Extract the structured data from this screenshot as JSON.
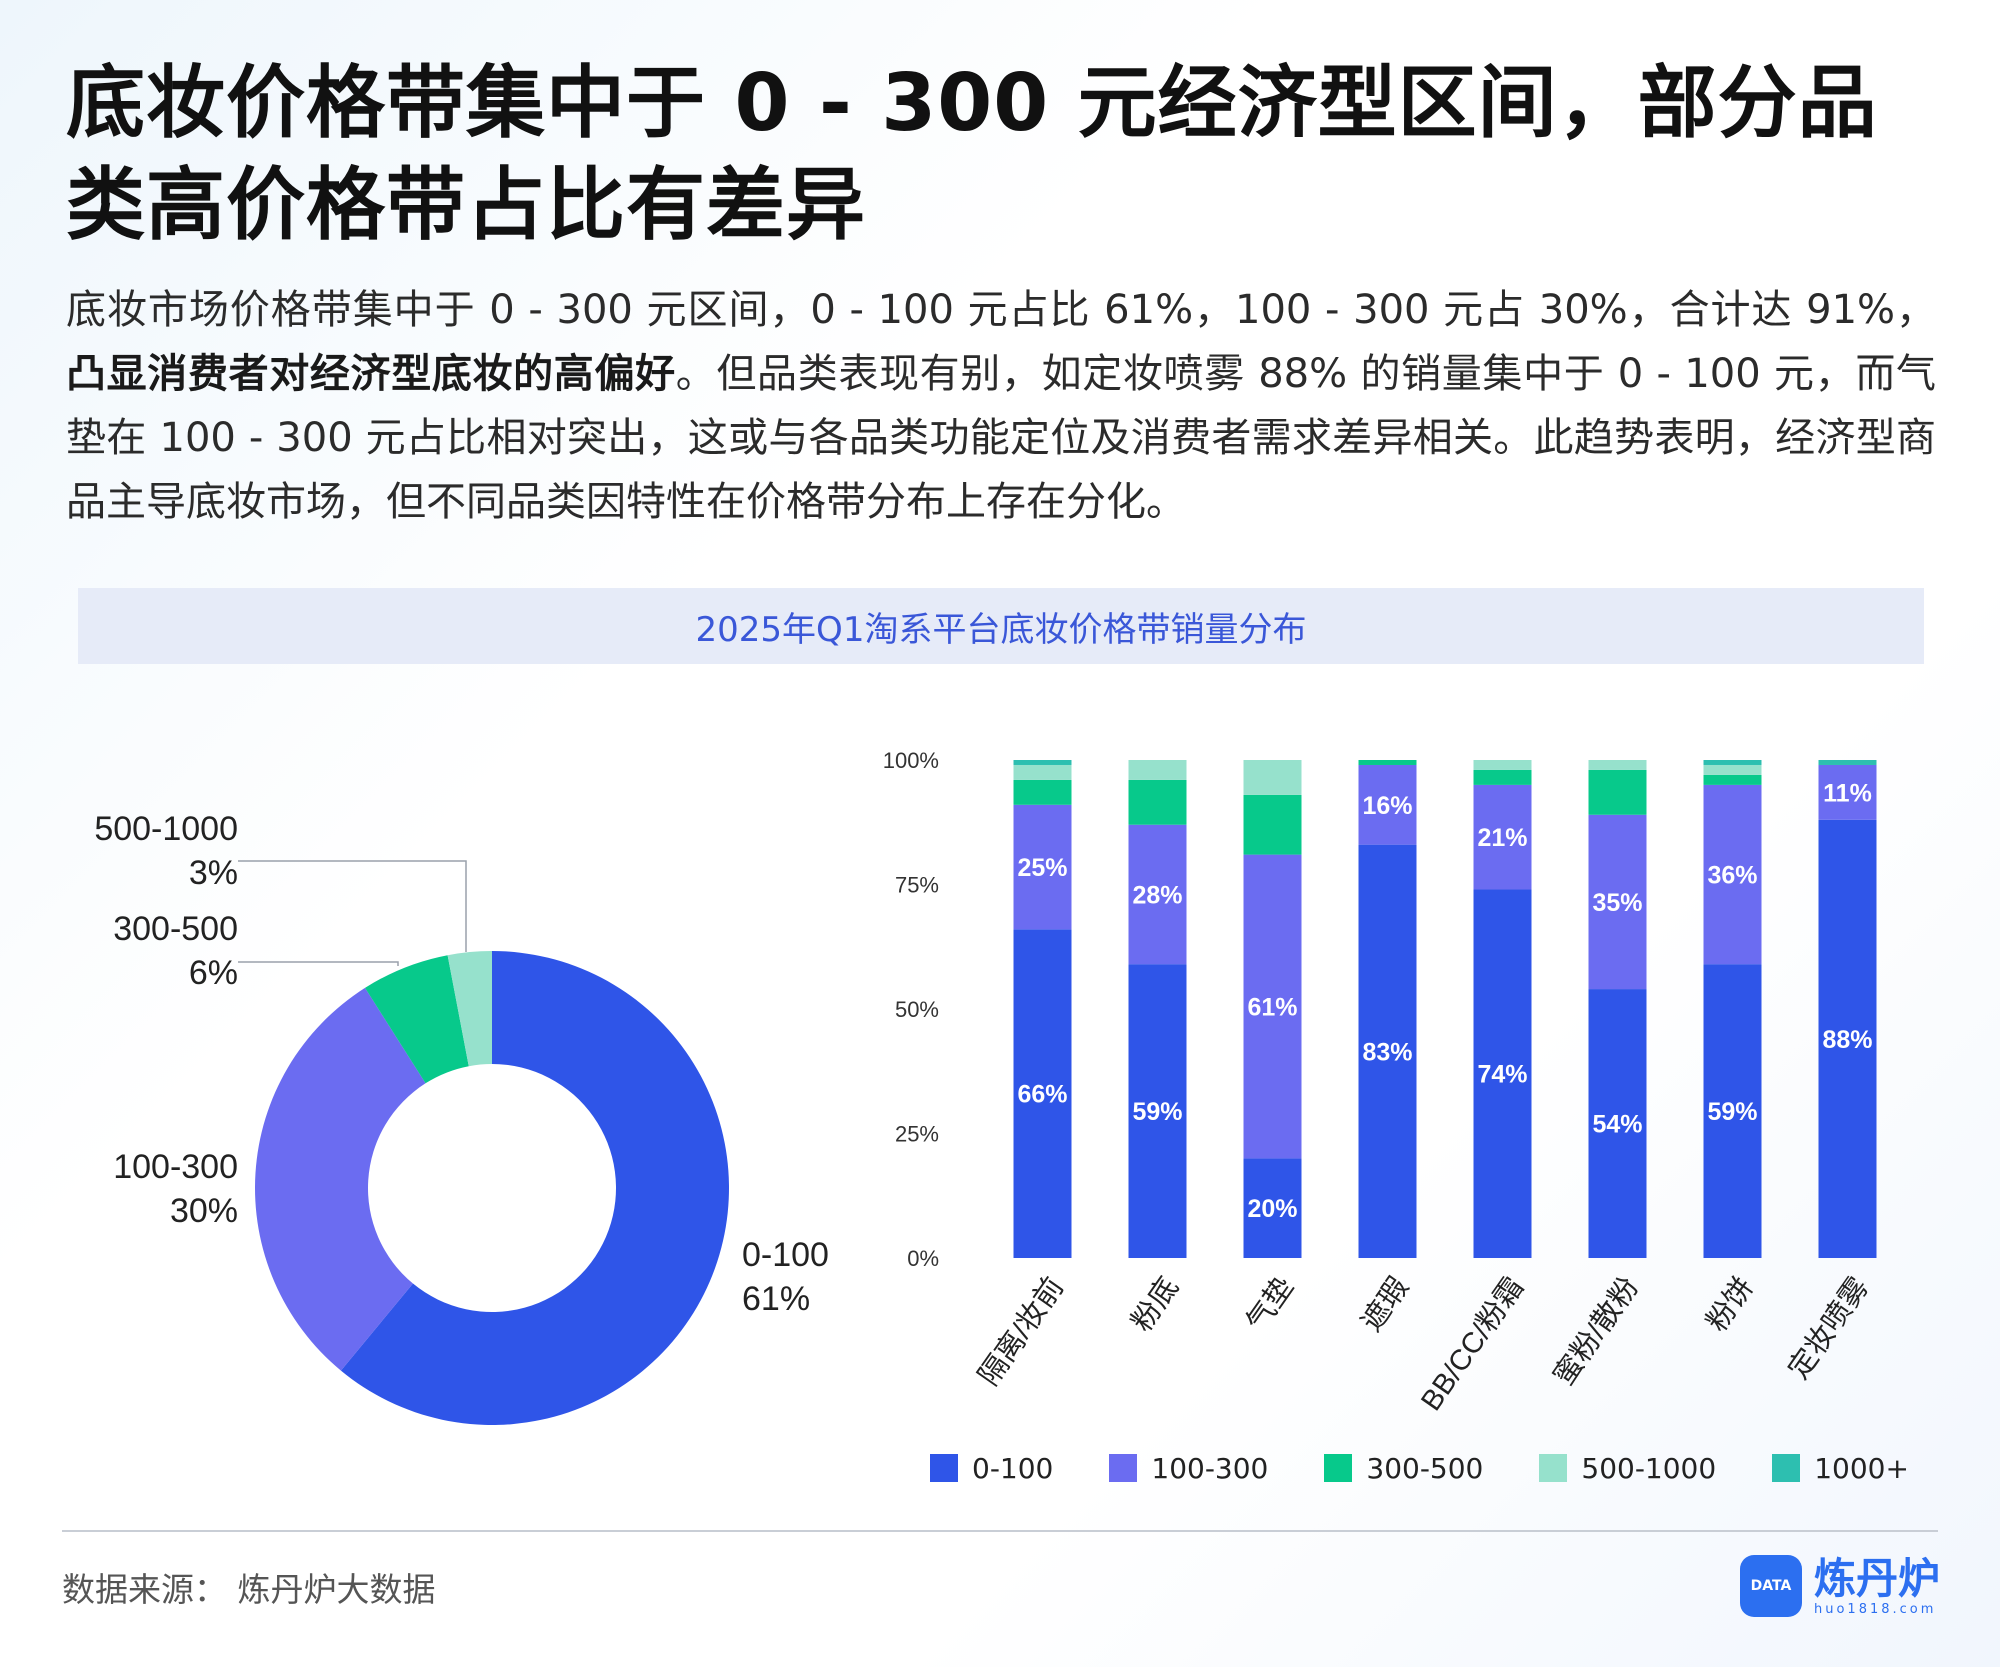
{
  "title_lines": [
    "底妆价格带集中于 0 - 300 元经济型区间，部分品",
    "类高价格带占比有差异"
  ],
  "desc": {
    "part1": "底妆市场价格带集中于 0 - 300 元区间，0 - 100 元占比 61%，100 - 300 元占 30%，合计达 91%，",
    "bold": "凸显消费者对经济型底妆的高偏好",
    "part2": "。但品类表现有别，如定妆喷雾 88% 的销量集中于 0 - 100 元，而气垫在 100 - 300 元占比相对突出，这或与各品类功能定位及消费者需求差异相关。此趋势表明，经济型商品主导底妆市场，但不同品类因特性在价格带分布上存在分化。"
  },
  "chart_title": "2025年Q1淘系平台底妆价格带销量分布",
  "colors": {
    "0-100": "#2f55e8",
    "100-300": "#6b6cf1",
    "300-500": "#07c98b",
    "500-1000": "#96e1cc",
    "1000+": "#2dbfb0"
  },
  "chart_data": [
    {
      "type": "pie",
      "variant": "donut",
      "title": "",
      "slices": [
        {
          "label": "0-100",
          "value": 61,
          "display": "61%"
        },
        {
          "label": "100-300",
          "value": 30,
          "display": "30%"
        },
        {
          "label": "300-500",
          "value": 6,
          "display": "6%"
        },
        {
          "label": "500-1000",
          "value": 3,
          "display": "3%"
        }
      ]
    },
    {
      "type": "bar",
      "variant": "stacked-100",
      "title": "",
      "categories": [
        "隔离/妆前",
        "粉底",
        "气垫",
        "遮瑕",
        "BB/CC/粉霜",
        "蜜粉/散粉",
        "粉饼",
        "定妆喷雾"
      ],
      "yticks": [
        "0%",
        "25%",
        "50%",
        "75%",
        "100%"
      ],
      "ylim": [
        0,
        100
      ],
      "legend_position": "bottom",
      "series": [
        {
          "name": "0-100",
          "values": [
            66,
            59,
            20,
            83,
            74,
            54,
            59,
            88
          ]
        },
        {
          "name": "100-300",
          "values": [
            25,
            28,
            61,
            16,
            21,
            35,
            36,
            11
          ]
        },
        {
          "name": "300-500",
          "values": [
            5,
            9,
            12,
            1,
            3,
            9,
            2,
            0
          ]
        },
        {
          "name": "500-1000",
          "values": [
            3,
            4,
            7,
            0,
            2,
            2,
            2,
            0
          ]
        },
        {
          "name": "1000+",
          "values": [
            1,
            0,
            0,
            0,
            0,
            0,
            1,
            1
          ]
        }
      ],
      "data_labels": [
        {
          "series": "0-100",
          "labels": [
            "66%",
            "59%",
            "20%",
            "83%",
            "74%",
            "54%",
            "59%",
            "88%"
          ]
        },
        {
          "series": "100-300",
          "labels": [
            "25%",
            "28%",
            "61%",
            "16%",
            "21%",
            "35%",
            "36%",
            "11%"
          ]
        }
      ]
    }
  ],
  "source": "数据来源：  炼丹炉大数据",
  "logo": {
    "mark": "DATA",
    "name": "炼丹炉",
    "url": "huo1818.com"
  }
}
